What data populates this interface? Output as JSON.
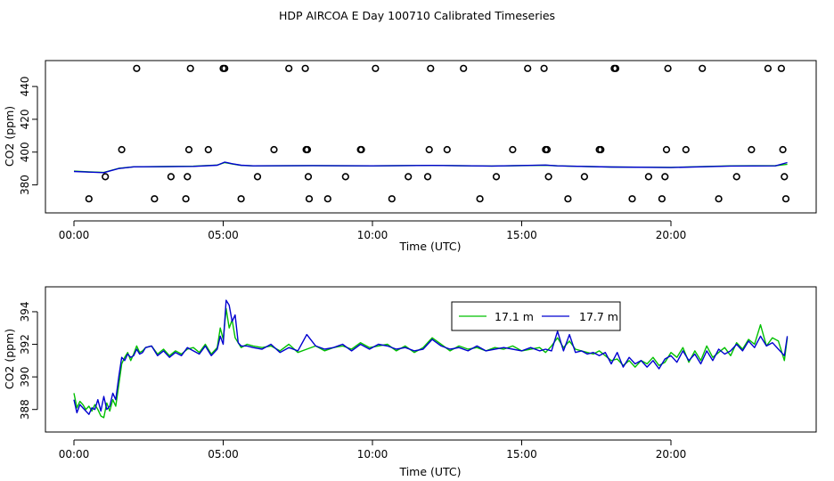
{
  "title": "HDP AIRCOA E  Day 100710  Calibrated Timeseries",
  "colors": {
    "s171": "#00c000",
    "s177": "#0000d0",
    "circle": "#000000"
  },
  "chart_data": [
    {
      "type": "line",
      "title": "HDP AIRCOA E  Day 100710  Calibrated Timeseries",
      "xlabel": "Time (UTC)",
      "ylabel": "CO2 (ppm)",
      "xlim": [
        0,
        24
      ],
      "ylim": [
        370,
        452
      ],
      "xticks": [
        0,
        5,
        10,
        15,
        20
      ],
      "xtick_labels": [
        "00:00",
        "05:00",
        "10:00",
        "15:00",
        "20:00"
      ],
      "yticks": [
        380,
        400,
        420,
        440
      ],
      "ytick_labels": [
        "380",
        "400",
        "420",
        "440"
      ],
      "grid": false,
      "series": [
        {
          "color": "#00c000",
          "x": [
            0,
            0.5,
            1.0,
            1.5,
            2.0,
            3,
            4,
            4.8,
            5.05,
            5.3,
            5.6,
            6,
            8,
            10,
            12,
            14,
            15.8,
            16.2,
            18,
            20,
            22,
            23.5,
            23.9
          ],
          "y": [
            388.4,
            387.9,
            387.6,
            390.1,
            391.0,
            391.2,
            391.4,
            392.1,
            393.6,
            392.8,
            391.9,
            391.6,
            391.8,
            391.6,
            391.9,
            391.5,
            392.0,
            391.6,
            390.9,
            390.7,
            391.6,
            391.7,
            392.6
          ]
        },
        {
          "color": "#0000d0",
          "x": [
            0,
            0.5,
            1.0,
            1.5,
            2.0,
            3,
            4,
            4.8,
            5.05,
            5.3,
            5.6,
            6,
            8,
            10,
            12,
            14,
            15.8,
            16.2,
            18,
            20,
            22,
            23.5,
            23.9
          ],
          "y": [
            388.2,
            387.8,
            387.5,
            390.0,
            391.0,
            391.1,
            391.3,
            392.0,
            393.9,
            392.9,
            392.0,
            391.6,
            391.8,
            391.6,
            391.9,
            391.5,
            392.1,
            391.6,
            390.9,
            390.6,
            391.5,
            391.6,
            393.6
          ]
        }
      ],
      "markers": {
        "shape": "circle",
        "x": [
          0.5,
          1.05,
          1.6,
          2.1,
          2.7,
          3.25,
          3.75,
          3.8,
          3.85,
          3.9,
          4.5,
          5.0,
          5.05,
          5.6,
          6.15,
          6.7,
          7.2,
          7.75,
          7.78,
          7.82,
          7.85,
          7.88,
          8.5,
          9.1,
          9.6,
          9.63,
          10.1,
          10.65,
          11.2,
          11.85,
          11.9,
          11.95,
          12.5,
          13.05,
          13.6,
          14.15,
          14.7,
          15.2,
          15.75,
          15.8,
          15.85,
          15.9,
          16.55,
          17.1,
          17.6,
          17.65,
          18.1,
          18.15,
          18.7,
          19.25,
          19.7,
          19.8,
          19.85,
          19.9,
          20.5,
          21.05,
          21.6,
          22.2,
          22.7,
          23.25,
          23.7,
          23.75,
          23.8,
          23.85
        ],
        "y": [
          371.5,
          385,
          401.5,
          451,
          371.5,
          385,
          371.5,
          385,
          401.5,
          451,
          401.5,
          451,
          451,
          371.5,
          385,
          401.5,
          451,
          451,
          401.5,
          401.5,
          385,
          371.5,
          371.5,
          385,
          401.5,
          401.5,
          451,
          371.5,
          385,
          385,
          401.5,
          451,
          401.5,
          451,
          371.5,
          385,
          401.5,
          451,
          451,
          401.5,
          401.5,
          385,
          371.5,
          385,
          401.5,
          401.5,
          451,
          451,
          371.5,
          385,
          371.5,
          385,
          401.5,
          451,
          401.5,
          451,
          371.5,
          385,
          401.5,
          451,
          451,
          401.5,
          385,
          371.5
        ]
      }
    },
    {
      "type": "line",
      "xlabel": "Time (UTC)",
      "ylabel": "CO2 (ppm)",
      "xlim": [
        0,
        24
      ],
      "ylim": [
        387,
        395.2
      ],
      "xticks": [
        0,
        5,
        10,
        15,
        20
      ],
      "xtick_labels": [
        "00:00",
        "05:00",
        "10:00",
        "15:00",
        "20:00"
      ],
      "yticks": [
        388,
        390,
        392,
        394
      ],
      "ytick_labels": [
        "388",
        "390",
        "392",
        "394"
      ],
      "grid": false,
      "legend": {
        "placement": "top-right",
        "entries": [
          "17.1 m",
          "17.7 m"
        ]
      },
      "series": [
        {
          "name": "17.1 m",
          "color": "#00c000",
          "x": [
            0.0,
            0.1,
            0.2,
            0.3,
            0.4,
            0.5,
            0.6,
            0.7,
            0.8,
            0.9,
            1.0,
            1.1,
            1.2,
            1.3,
            1.4,
            1.5,
            1.6,
            1.7,
            1.8,
            1.9,
            2.0,
            2.1,
            2.2,
            2.3,
            2.4,
            2.6,
            2.8,
            3.0,
            3.2,
            3.4,
            3.6,
            3.8,
            4.0,
            4.2,
            4.4,
            4.6,
            4.8,
            4.9,
            5.0,
            5.1,
            5.2,
            5.3,
            5.4,
            5.5,
            5.6,
            5.8,
            6.0,
            6.3,
            6.6,
            6.9,
            7.2,
            7.5,
            7.8,
            8.1,
            8.4,
            8.7,
            9.0,
            9.3,
            9.6,
            9.9,
            10.2,
            10.5,
            10.8,
            11.1,
            11.4,
            11.7,
            12.0,
            12.3,
            12.6,
            12.9,
            13.2,
            13.5,
            13.8,
            14.1,
            14.4,
            14.7,
            15.0,
            15.3,
            15.6,
            15.8,
            16.0,
            16.2,
            16.4,
            16.6,
            16.8,
            17.0,
            17.2,
            17.4,
            17.6,
            17.8,
            18.0,
            18.2,
            18.4,
            18.6,
            18.8,
            19.0,
            19.2,
            19.4,
            19.6,
            19.8,
            20.0,
            20.2,
            20.4,
            20.6,
            20.8,
            21.0,
            21.2,
            21.4,
            21.6,
            21.8,
            22.0,
            22.2,
            22.4,
            22.6,
            22.8,
            23.0,
            23.2,
            23.4,
            23.6,
            23.8,
            23.9
          ],
          "y": [
            389.0,
            388.1,
            388.5,
            388.3,
            388.0,
            388.2,
            387.9,
            388.3,
            388.0,
            387.6,
            387.5,
            388.4,
            387.9,
            388.6,
            388.2,
            389.5,
            390.8,
            391.2,
            391.5,
            391.0,
            391.4,
            391.9,
            391.5,
            391.6,
            391.8,
            391.9,
            391.4,
            391.7,
            391.3,
            391.6,
            391.4,
            391.7,
            391.8,
            391.5,
            392.0,
            391.4,
            391.8,
            393.0,
            392.3,
            394.2,
            393.0,
            393.5,
            392.4,
            392.1,
            391.8,
            392.0,
            391.9,
            391.8,
            391.9,
            391.6,
            392.0,
            391.5,
            391.7,
            391.9,
            391.6,
            391.8,
            391.9,
            391.7,
            392.1,
            391.8,
            391.9,
            392.0,
            391.6,
            391.9,
            391.5,
            391.8,
            392.4,
            392.0,
            391.6,
            391.9,
            391.7,
            391.8,
            391.6,
            391.8,
            391.7,
            391.9,
            391.6,
            391.7,
            391.8,
            391.5,
            391.9,
            392.4,
            391.8,
            392.2,
            391.7,
            391.6,
            391.5,
            391.4,
            391.6,
            391.3,
            391.0,
            391.1,
            390.7,
            391.0,
            390.6,
            391.0,
            390.8,
            391.2,
            390.7,
            390.9,
            391.5,
            391.2,
            391.8,
            390.9,
            391.6,
            391.0,
            391.9,
            391.2,
            391.5,
            391.8,
            391.3,
            392.1,
            391.7,
            392.3,
            392.0,
            393.2,
            391.9,
            392.4,
            392.2,
            391.0,
            392.4
          ]
        },
        {
          "name": "17.7 m",
          "color": "#0000d0",
          "x": [
            0.0,
            0.1,
            0.2,
            0.3,
            0.4,
            0.5,
            0.6,
            0.7,
            0.8,
            0.9,
            1.0,
            1.1,
            1.2,
            1.3,
            1.4,
            1.5,
            1.6,
            1.7,
            1.8,
            1.9,
            2.0,
            2.1,
            2.2,
            2.3,
            2.4,
            2.6,
            2.8,
            3.0,
            3.2,
            3.4,
            3.6,
            3.8,
            4.0,
            4.2,
            4.4,
            4.6,
            4.8,
            4.9,
            5.0,
            5.1,
            5.2,
            5.3,
            5.4,
            5.5,
            5.6,
            5.8,
            6.0,
            6.3,
            6.6,
            6.9,
            7.2,
            7.5,
            7.8,
            8.1,
            8.4,
            8.7,
            9.0,
            9.3,
            9.6,
            9.9,
            10.2,
            10.5,
            10.8,
            11.1,
            11.4,
            11.7,
            12.0,
            12.3,
            12.6,
            12.9,
            13.2,
            13.5,
            13.8,
            14.1,
            14.4,
            14.7,
            15.0,
            15.3,
            15.6,
            15.8,
            16.0,
            16.2,
            16.4,
            16.6,
            16.8,
            17.0,
            17.2,
            17.4,
            17.6,
            17.8,
            18.0,
            18.2,
            18.4,
            18.6,
            18.8,
            19.0,
            19.2,
            19.4,
            19.6,
            19.8,
            20.0,
            20.2,
            20.4,
            20.6,
            20.8,
            21.0,
            21.2,
            21.4,
            21.6,
            21.8,
            22.0,
            22.2,
            22.4,
            22.6,
            22.8,
            23.0,
            23.2,
            23.4,
            23.6,
            23.8,
            23.9
          ],
          "y": [
            388.6,
            387.8,
            388.3,
            388.1,
            387.9,
            387.7,
            388.1,
            388.0,
            388.6,
            387.9,
            388.8,
            388.0,
            388.2,
            389.0,
            388.6,
            390.0,
            391.2,
            391.0,
            391.4,
            391.2,
            391.3,
            391.7,
            391.4,
            391.5,
            391.8,
            391.9,
            391.3,
            391.6,
            391.2,
            391.5,
            391.3,
            391.8,
            391.6,
            391.4,
            391.9,
            391.3,
            391.7,
            392.5,
            392.0,
            394.7,
            394.4,
            393.4,
            393.8,
            392.1,
            391.9,
            391.9,
            391.8,
            391.7,
            392.0,
            391.5,
            391.8,
            391.6,
            392.6,
            391.9,
            391.7,
            391.8,
            392.0,
            391.6,
            392.0,
            391.7,
            392.0,
            391.9,
            391.7,
            391.8,
            391.6,
            391.7,
            392.3,
            391.9,
            391.7,
            391.8,
            391.6,
            391.9,
            391.6,
            391.7,
            391.8,
            391.7,
            391.6,
            391.8,
            391.6,
            391.7,
            391.6,
            392.8,
            391.6,
            392.6,
            391.5,
            391.6,
            391.4,
            391.5,
            391.3,
            391.5,
            390.8,
            391.5,
            390.6,
            391.2,
            390.8,
            391.0,
            390.6,
            391.0,
            390.5,
            391.1,
            391.3,
            390.9,
            391.6,
            391.0,
            391.4,
            390.8,
            391.6,
            391.0,
            391.7,
            391.4,
            391.6,
            392.0,
            391.6,
            392.2,
            391.8,
            392.5,
            391.9,
            392.1,
            391.7,
            391.3,
            392.5
          ]
        }
      ]
    }
  ]
}
